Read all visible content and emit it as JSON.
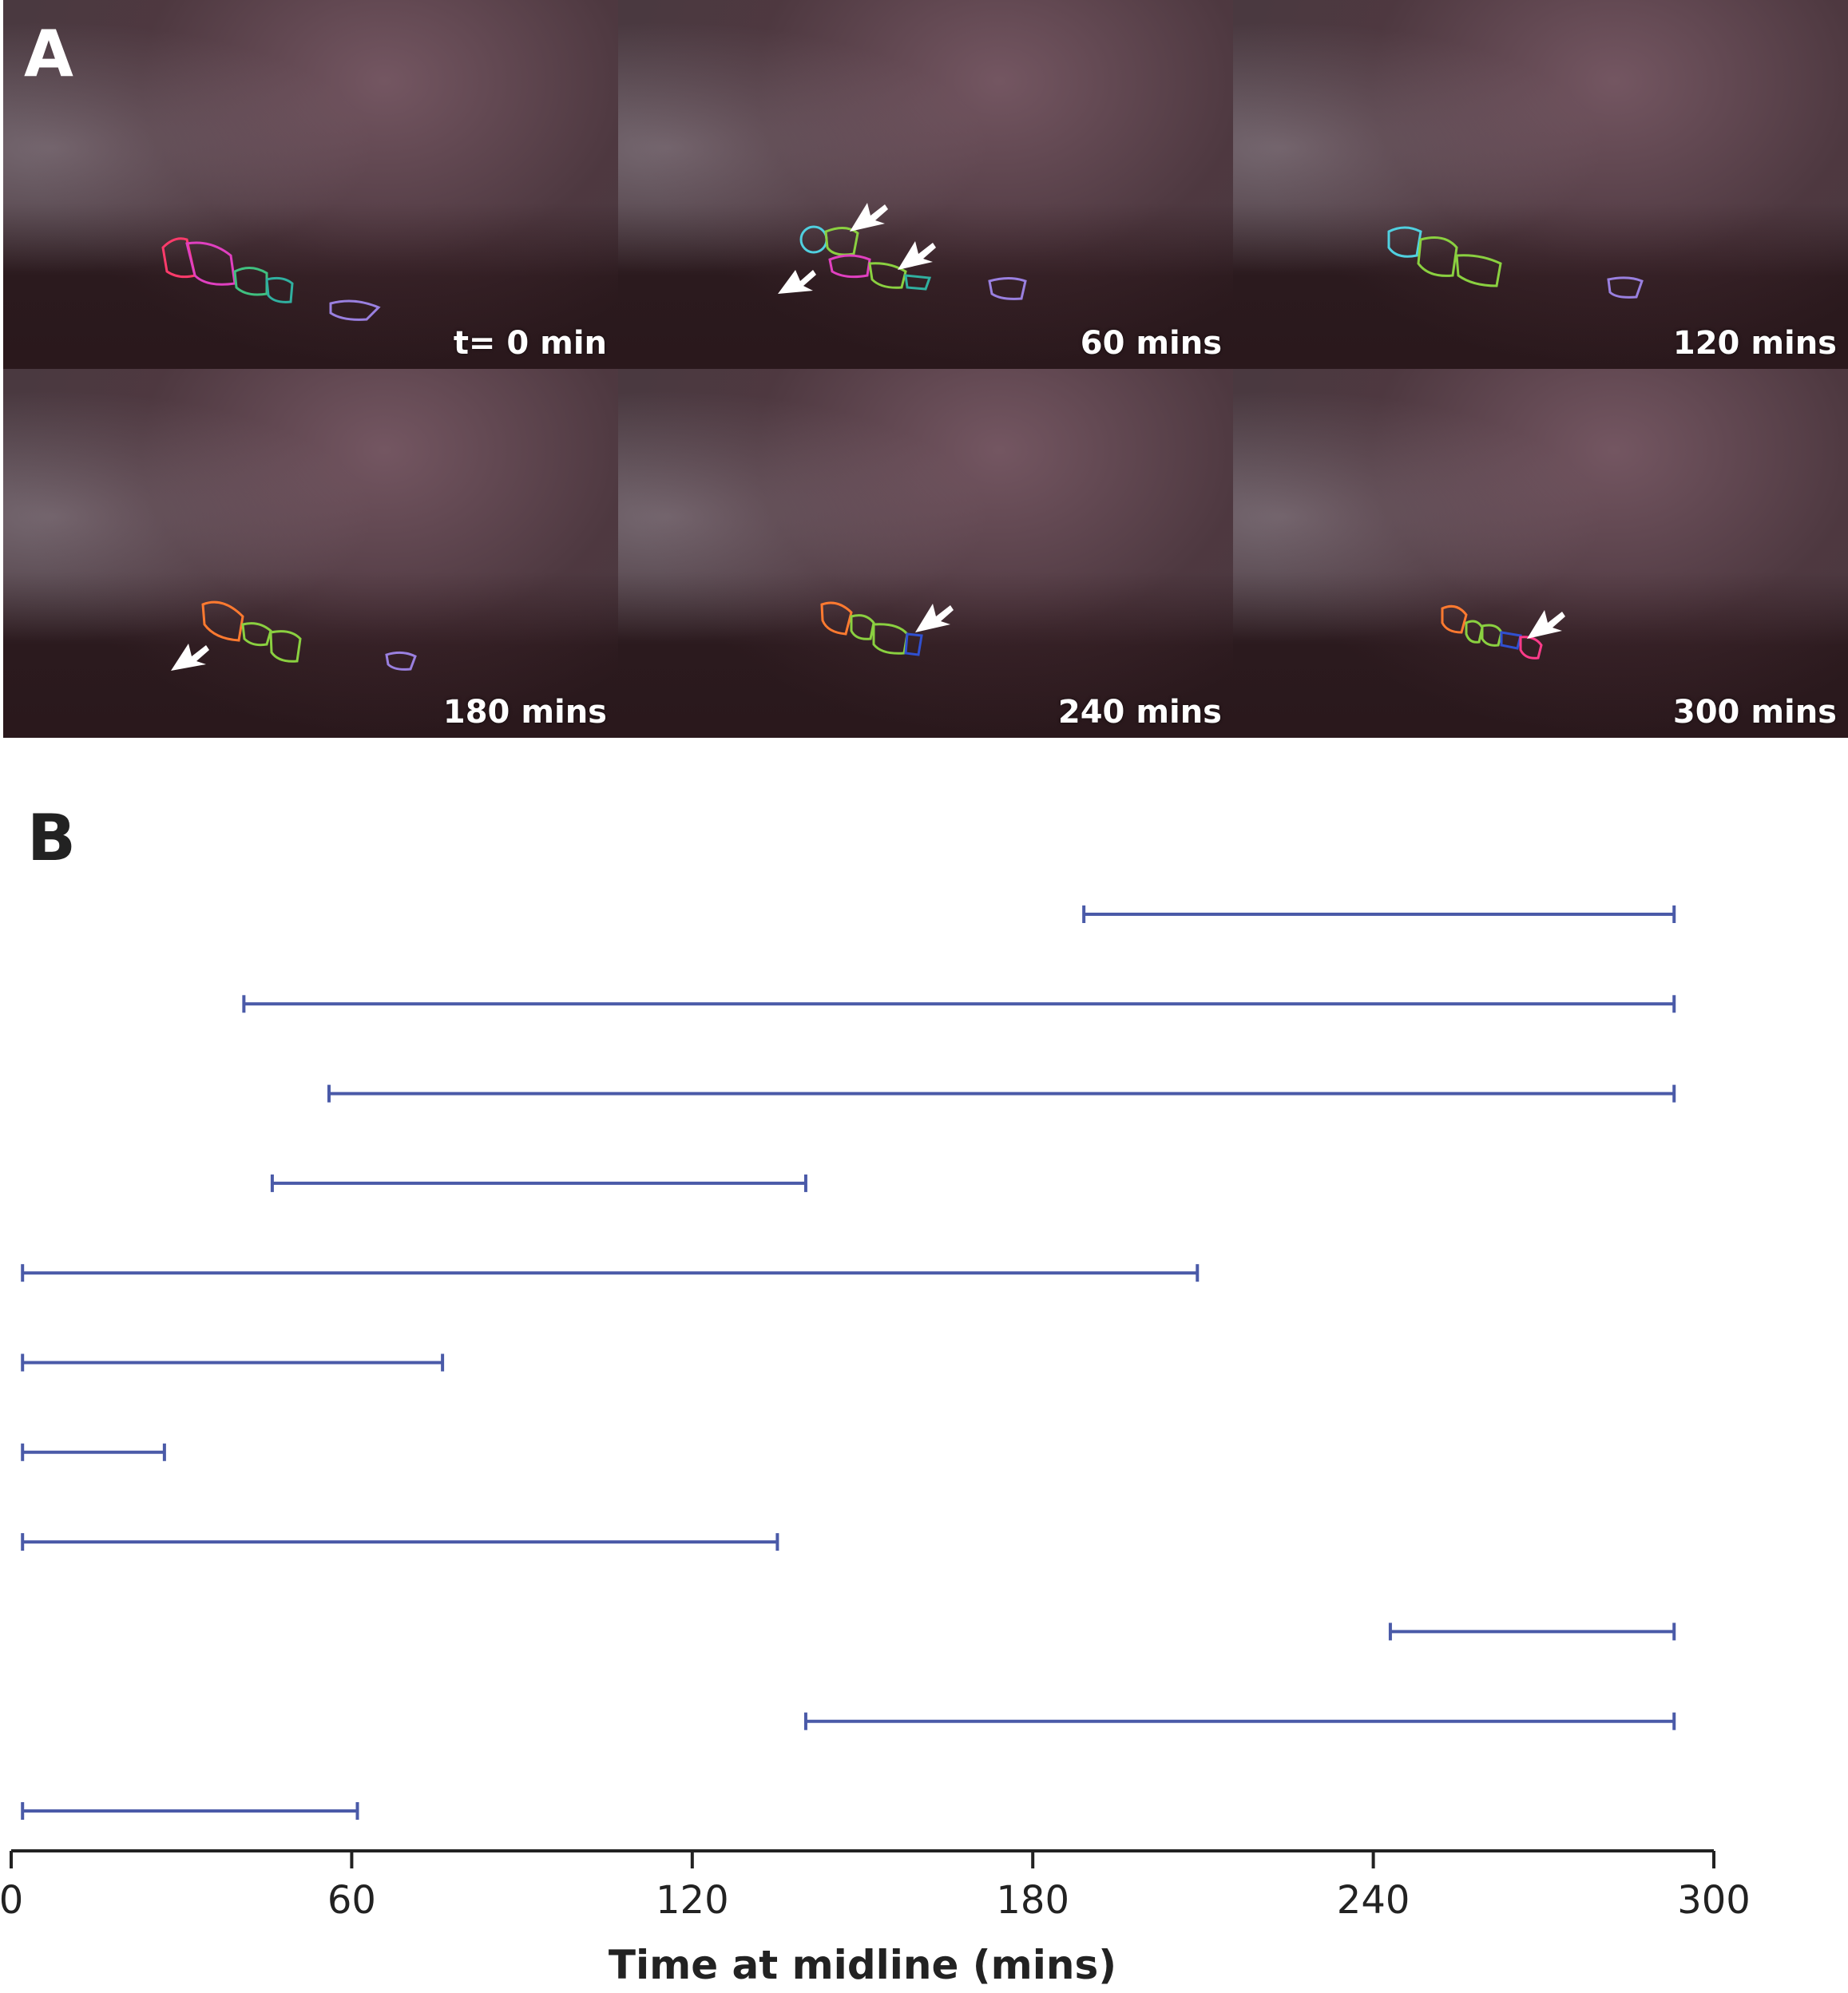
{
  "panel_a": {
    "letter": "A",
    "tiles": [
      {
        "time_label": "t= 0 min",
        "arrows": 0
      },
      {
        "time_label": "60 mins",
        "arrows": 3
      },
      {
        "time_label": "120 mins",
        "arrows": 0
      },
      {
        "time_label": "180 mins",
        "arrows": 1
      },
      {
        "time_label": "240 mins",
        "arrows": 1
      },
      {
        "time_label": "300 mins",
        "arrows": 1
      }
    ],
    "outline_colors": [
      "#ff3b6b",
      "#e040c0",
      "#40c080",
      "#30b0a0",
      "#9a80e0",
      "#ff7a30",
      "#50d0e0",
      "#8ad040",
      "#3050d0"
    ]
  },
  "panel_b": {
    "letter": "B"
  },
  "chart_data": {
    "type": "gantt",
    "xlabel": "Time at midline (mins)",
    "xlim": [
      0,
      300
    ],
    "xticks": [
      0,
      60,
      120,
      180,
      240,
      300
    ],
    "color": "#4a5aa8",
    "intervals": [
      {
        "start": 189,
        "end": 293
      },
      {
        "start": 41,
        "end": 293
      },
      {
        "start": 56,
        "end": 293
      },
      {
        "start": 46,
        "end": 140
      },
      {
        "start": 2,
        "end": 209
      },
      {
        "start": 2,
        "end": 76
      },
      {
        "start": 2,
        "end": 27
      },
      {
        "start": 2,
        "end": 135
      },
      {
        "start": 243,
        "end": 293
      },
      {
        "start": 140,
        "end": 293
      },
      {
        "start": 2,
        "end": 61
      }
    ]
  }
}
